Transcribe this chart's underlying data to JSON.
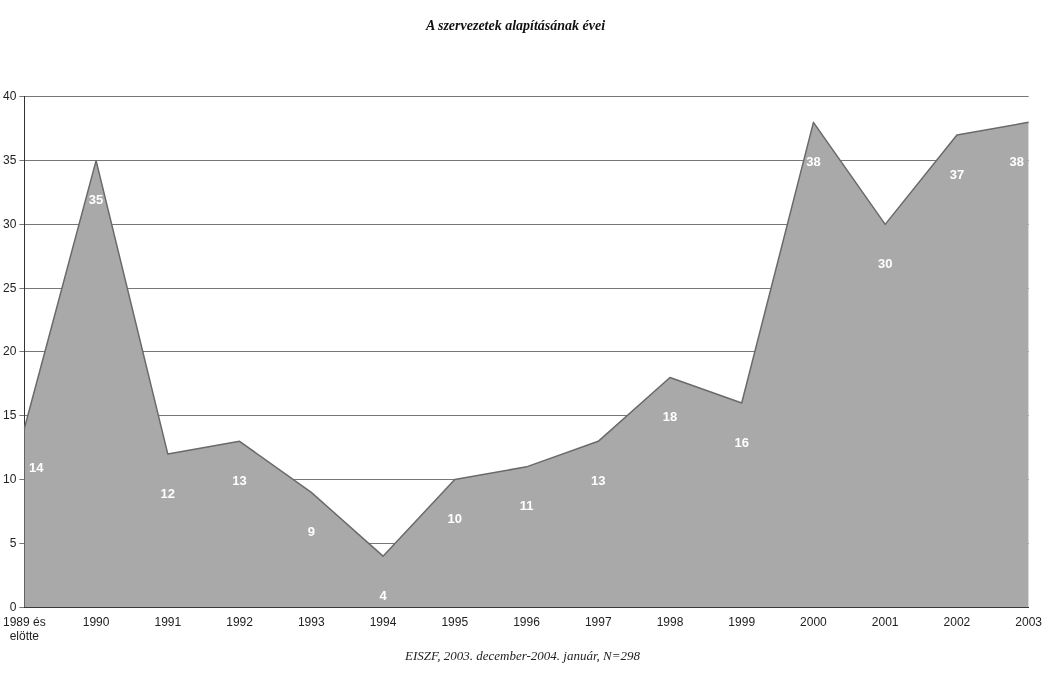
{
  "chart_data": {
    "type": "area",
    "title": "A szervezetek alapításának évei",
    "categories": [
      "1989 és\nelötte",
      "1990",
      "1991",
      "1992",
      "1993",
      "1994",
      "1995",
      "1996",
      "1997",
      "1998",
      "1999",
      "2000",
      "2001",
      "2002",
      "2003"
    ],
    "series": [
      {
        "color": "#a9a9a9",
        "values": [
          14,
          35,
          12,
          13,
          9,
          4,
          10,
          11,
          13,
          18,
          16,
          38,
          30,
          37,
          38
        ]
      }
    ],
    "ylim": [
      0,
      40
    ],
    "yticks": [
      0,
      5,
      10,
      15,
      20,
      25,
      30,
      35,
      40
    ],
    "grid": "y",
    "data_labels": true,
    "legend": false,
    "annotations": [
      "EISZF, 2003. december-2004. január, N=298"
    ]
  }
}
